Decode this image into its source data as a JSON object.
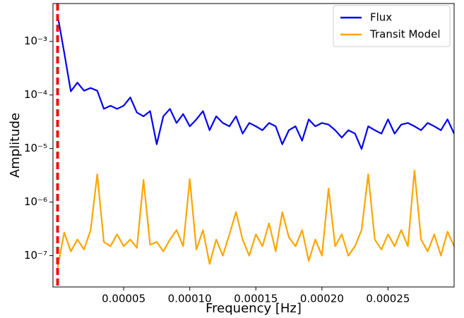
{
  "chart_data": {
    "type": "line",
    "xlabel": "Frequency [Hz]",
    "ylabel": "Amplitude",
    "yscale": "log",
    "grid": false,
    "legend": "upper right",
    "xlim": [
      -3.5e-06,
      0.0003
    ],
    "ylim": [
      2.6e-08,
      0.0051
    ],
    "xticks": [
      5e-05,
      {
        "value": 0.0001,
        "label": "0.00010"
      },
      0.00015,
      {
        "value": 0.0002,
        "label": "0.00020"
      },
      0.00025
    ],
    "yticks": [
      {
        "value": 1e-07,
        "label": "10⁻⁷"
      },
      {
        "value": 1e-06,
        "label": "10⁻⁶"
      },
      {
        "value": 1e-05,
        "label": "10⁻⁵"
      },
      {
        "value": 0.0001,
        "label": "10⁻⁴"
      },
      {
        "value": 0.001,
        "label": "10⁻³"
      }
    ],
    "vline": {
      "x": 0,
      "color": "#ee1111",
      "style": "dashed"
    },
    "x": [
      0,
      5e-06,
      1e-05,
      1.5e-05,
      2e-05,
      2.5e-05,
      3e-05,
      3.5e-05,
      4e-05,
      4.5e-05,
      5e-05,
      5.5e-05,
      6e-05,
      6.5e-05,
      7e-05,
      7.5e-05,
      8e-05,
      8.5e-05,
      9e-05,
      9.5e-05,
      0.0001,
      0.000105,
      0.00011,
      0.000115,
      0.00012,
      0.000125,
      0.00013,
      0.000135,
      0.00014,
      0.000145,
      0.00015,
      0.000155,
      0.00016,
      0.000165,
      0.00017,
      0.000175,
      0.00018,
      0.000185,
      0.00019,
      0.000195,
      0.0002,
      0.000205,
      0.00021,
      0.000215,
      0.00022,
      0.000225,
      0.00023,
      0.000235,
      0.00024,
      0.000245,
      0.00025,
      0.000255,
      0.00026,
      0.000265,
      0.00027,
      0.000275,
      0.00028,
      0.000285,
      0.00029,
      0.000295,
      0.0003
    ],
    "series": [
      {
        "name": "Flux",
        "color": "#0000ee",
        "values": [
          0.0031,
          0.00062,
          0.000117,
          0.00017,
          0.00012,
          0.000135,
          0.00012,
          5.5e-05,
          6.3e-05,
          5.5e-05,
          6.3e-05,
          9e-05,
          4.7e-05,
          4e-05,
          5e-05,
          1.2e-05,
          4e-05,
          5.5e-05,
          3e-05,
          4.4e-05,
          2.6e-05,
          3.5e-05,
          5e-05,
          2.2e-05,
          4e-05,
          3e-05,
          2.6e-05,
          4e-05,
          1.9e-05,
          3e-05,
          2.6e-05,
          2.2e-05,
          3e-05,
          2.6e-05,
          1.2e-05,
          2.2e-05,
          2.6e-05,
          1.4e-05,
          3.5e-05,
          2.6e-05,
          3e-05,
          2.8e-05,
          2.2e-05,
          1.6e-05,
          2.2e-05,
          1.9e-05,
          9.8e-06,
          2.6e-05,
          2.2e-05,
          1.9e-05,
          3.5e-05,
          1.9e-05,
          2.8e-05,
          3e-05,
          2.6e-05,
          2.2e-05,
          3e-05,
          2.6e-05,
          2.2e-05,
          3.5e-05,
          1.9e-05
        ]
      },
      {
        "name": "Transit Model",
        "color": "#ffa500",
        "values": [
          6e-08,
          2.7e-07,
          1.2e-07,
          2e-07,
          1.3e-07,
          3e-07,
          3.3e-06,
          1.8e-07,
          1.5e-07,
          2.5e-07,
          1.5e-07,
          2e-07,
          1.4e-07,
          2.6e-06,
          1.6e-07,
          1.8e-07,
          1.2e-07,
          2e-07,
          3e-07,
          1.5e-07,
          2.7e-06,
          1.3e-07,
          3e-07,
          7e-08,
          2e-07,
          1e-07,
          2.5e-07,
          6.5e-07,
          2e-07,
          1e-07,
          2.5e-07,
          1.5e-07,
          4e-07,
          1.2e-07,
          6.5e-07,
          2.2e-07,
          1.5e-07,
          3e-07,
          8e-08,
          2e-07,
          1e-07,
          1.8e-06,
          1.5e-07,
          2.5e-07,
          1e-07,
          1.5e-07,
          3e-07,
          3.3e-06,
          2e-07,
          1.3e-07,
          2.5e-07,
          1.5e-07,
          3e-07,
          1.5e-07,
          3.9e-06,
          2e-07,
          1.2e-07,
          2.5e-07,
          1e-07,
          2.8e-07,
          1.5e-07
        ]
      }
    ]
  }
}
